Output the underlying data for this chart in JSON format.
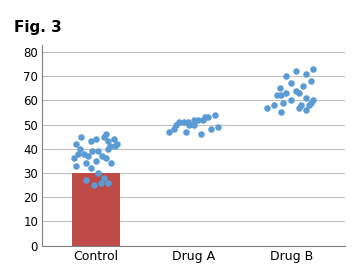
{
  "title": "Fig. 3",
  "categories": [
    "Control",
    "Drug A",
    "Drug B"
  ],
  "bar_value": 30,
  "bar_color": "#be4b48",
  "dot_color": "#5b9bd5",
  "ylim": [
    0,
    83
  ],
  "yticks": [
    0,
    10,
    20,
    30,
    40,
    50,
    60,
    70,
    80
  ],
  "control_dots_y": [
    45,
    44,
    46,
    43,
    45,
    42,
    44,
    43,
    38,
    37,
    39,
    40,
    41,
    38,
    36,
    37,
    34,
    35,
    33,
    36,
    32,
    34,
    30,
    28,
    26,
    25,
    27,
    26,
    41,
    40,
    42,
    39
  ],
  "control_dots_x_offsets": [
    -0.15,
    0.0,
    0.1,
    -0.05,
    0.08,
    -0.2,
    0.18,
    0.12,
    -0.18,
    -0.08,
    0.02,
    0.12,
    0.2,
    -0.12,
    -0.22,
    0.06,
    -0.1,
    0.0,
    -0.2,
    0.1,
    -0.05,
    0.15,
    0.02,
    0.08,
    0.12,
    -0.02,
    -0.1,
    0.05,
    0.14,
    -0.16,
    0.22,
    -0.04
  ],
  "drug_a_dots_y": [
    51,
    50,
    52,
    53,
    54,
    52,
    51,
    50,
    48,
    47,
    46,
    48,
    49,
    50,
    47,
    52,
    53,
    51
  ],
  "drug_a_dots_x_offsets": [
    -0.15,
    -0.05,
    0.05,
    0.15,
    0.22,
    0.1,
    -0.1,
    0.0,
    -0.2,
    -0.08,
    0.08,
    0.18,
    0.25,
    -0.18,
    -0.25,
    0.0,
    0.12,
    -0.06
  ],
  "drug_b_dots_y": [
    58,
    59,
    60,
    58,
    59,
    57,
    56,
    62,
    63,
    64,
    61,
    60,
    62,
    63,
    65,
    67,
    66,
    68,
    70,
    72,
    71,
    73,
    55,
    57,
    58
  ],
  "drug_b_dots_x_offsets": [
    -0.18,
    -0.08,
    0.0,
    0.1,
    0.2,
    -0.25,
    0.15,
    -0.15,
    -0.05,
    0.05,
    0.15,
    0.22,
    -0.1,
    0.08,
    -0.12,
    0.0,
    0.12,
    0.2,
    -0.05,
    0.05,
    0.15,
    0.22,
    -0.1,
    0.08,
    0.18
  ],
  "background_color": "#ffffff",
  "grid_color": "#bfbfbf",
  "title_fontsize": 11,
  "label_fontsize": 9,
  "tick_fontsize": 8.5
}
